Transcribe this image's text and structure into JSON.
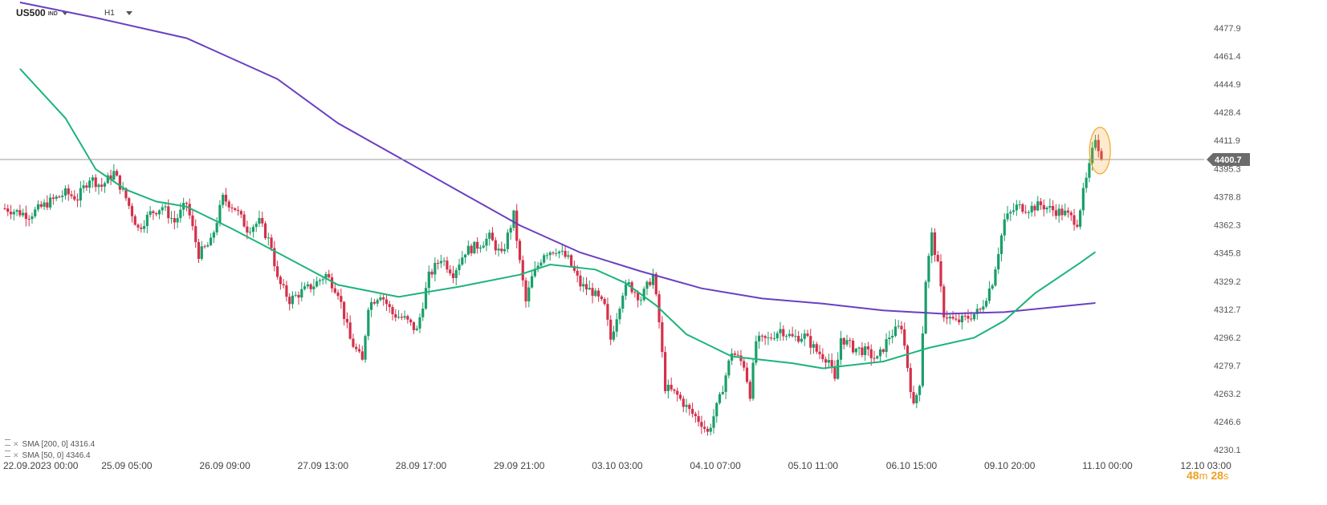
{
  "header": {
    "symbol": "US500",
    "symbol_suffix": "IND",
    "timeframe": "H1"
  },
  "legend": [
    {
      "label": "SMA [200, 0]",
      "value": "4316.4",
      "color": "#6a3fc2"
    },
    {
      "label": "SMA [50, 0]",
      "value": "4346.4",
      "color": "#1db47a"
    }
  ],
  "countdown": {
    "minutes": "48",
    "minutes_unit": "m",
    "seconds": "28",
    "seconds_unit": "s"
  },
  "current_price": {
    "label": "4400.7",
    "value": 4400.7
  },
  "colors": {
    "up": "#1a9e6a",
    "down": "#d4304a",
    "sma200": "#6a3fc2",
    "sma50": "#1db47a",
    "price_line": "#999999",
    "highlight": "#f5a623"
  },
  "chart_data": {
    "type": "candlestick",
    "instrument": "US500",
    "timeframe": "H1",
    "y_ticks": [
      "4477.9",
      "4461.4",
      "4444.9",
      "4428.4",
      "4411.9",
      "4395.3",
      "4378.8",
      "4362.3",
      "4345.8",
      "4329.2",
      "4312.7",
      "4296.2",
      "4279.7",
      "4263.2",
      "4246.6",
      "4230.1"
    ],
    "y_range": [
      4225,
      4485
    ],
    "x_ticks": [
      "22.09.2023  00:00",
      "25.09  05:00",
      "26.09  09:00",
      "27.09  13:00",
      "28.09  17:00",
      "29.09  21:00",
      "03.10  03:00",
      "04.10  07:00",
      "05.10  11:00",
      "06.10  15:00",
      "09.10  20:00",
      "11.10  00:00",
      "12.10  03:00"
    ],
    "price_points": [
      [
        0,
        4372
      ],
      [
        8,
        4368
      ],
      [
        14,
        4375
      ],
      [
        20,
        4381
      ],
      [
        24,
        4378
      ],
      [
        28,
        4390
      ],
      [
        32,
        4385
      ],
      [
        36,
        4393
      ],
      [
        40,
        4378
      ],
      [
        44,
        4360
      ],
      [
        48,
        4369
      ],
      [
        52,
        4373
      ],
      [
        56,
        4364
      ],
      [
        60,
        4375
      ],
      [
        64,
        4345
      ],
      [
        68,
        4352
      ],
      [
        72,
        4378
      ],
      [
        76,
        4372
      ],
      [
        80,
        4360
      ],
      [
        84,
        4364
      ],
      [
        88,
        4350
      ],
      [
        90,
        4330
      ],
      [
        94,
        4318
      ],
      [
        98,
        4323
      ],
      [
        102,
        4327
      ],
      [
        106,
        4333
      ],
      [
        110,
        4323
      ],
      [
        114,
        4295
      ],
      [
        118,
        4282
      ],
      [
        120,
        4315
      ],
      [
        124,
        4322
      ],
      [
        128,
        4310
      ],
      [
        132,
        4307
      ],
      [
        136,
        4300
      ],
      [
        140,
        4332
      ],
      [
        144,
        4343
      ],
      [
        148,
        4334
      ],
      [
        152,
        4347
      ],
      [
        156,
        4350
      ],
      [
        160,
        4355
      ],
      [
        164,
        4344
      ],
      [
        168,
        4368
      ],
      [
        170,
        4340
      ],
      [
        172,
        4317
      ],
      [
        174,
        4331
      ],
      [
        178,
        4346
      ],
      [
        182,
        4348
      ],
      [
        186,
        4342
      ],
      [
        190,
        4327
      ],
      [
        194,
        4323
      ],
      [
        198,
        4314
      ],
      [
        200,
        4295
      ],
      [
        204,
        4323
      ],
      [
        206,
        4327
      ],
      [
        210,
        4319
      ],
      [
        214,
        4333
      ],
      [
        216,
        4305
      ],
      [
        218,
        4267
      ],
      [
        222,
        4262
      ],
      [
        226,
        4253
      ],
      [
        230,
        4246
      ],
      [
        232,
        4240
      ],
      [
        236,
        4260
      ],
      [
        240,
        4288
      ],
      [
        244,
        4280
      ],
      [
        246,
        4263
      ],
      [
        248,
        4294
      ],
      [
        252,
        4295
      ],
      [
        256,
        4301
      ],
      [
        260,
        4296
      ],
      [
        264,
        4297
      ],
      [
        268,
        4288
      ],
      [
        272,
        4283
      ],
      [
        274,
        4270
      ],
      [
        276,
        4296
      ],
      [
        280,
        4290
      ],
      [
        284,
        4288
      ],
      [
        288,
        4283
      ],
      [
        292,
        4297
      ],
      [
        296,
        4303
      ],
      [
        300,
        4255
      ],
      [
        302,
        4270
      ],
      [
        304,
        4330
      ],
      [
        306,
        4356
      ],
      [
        308,
        4338
      ],
      [
        310,
        4310
      ],
      [
        314,
        4305
      ],
      [
        318,
        4308
      ],
      [
        322,
        4312
      ],
      [
        326,
        4329
      ],
      [
        330,
        4365
      ],
      [
        334,
        4373
      ],
      [
        338,
        4372
      ],
      [
        342,
        4374
      ],
      [
        346,
        4371
      ],
      [
        350,
        4369
      ],
      [
        354,
        4364
      ],
      [
        356,
        4381
      ],
      [
        358,
        4396
      ],
      [
        360,
        4414
      ],
      [
        362,
        4402
      ]
    ],
    "sma200_points": [
      [
        5,
        4493
      ],
      [
        30,
        4484
      ],
      [
        60,
        4472
      ],
      [
        90,
        4448
      ],
      [
        110,
        4422
      ],
      [
        130,
        4402
      ],
      [
        150,
        4382
      ],
      [
        170,
        4362
      ],
      [
        190,
        4346
      ],
      [
        210,
        4335
      ],
      [
        230,
        4325
      ],
      [
        250,
        4319
      ],
      [
        270,
        4316
      ],
      [
        290,
        4312
      ],
      [
        310,
        4310
      ],
      [
        330,
        4311
      ],
      [
        360,
        4316.4
      ]
    ],
    "sma50_points": [
      [
        5,
        4454
      ],
      [
        20,
        4425
      ],
      [
        30,
        4395
      ],
      [
        40,
        4383
      ],
      [
        50,
        4376
      ],
      [
        60,
        4373
      ],
      [
        75,
        4360
      ],
      [
        90,
        4346
      ],
      [
        110,
        4327
      ],
      [
        130,
        4320
      ],
      [
        150,
        4326
      ],
      [
        170,
        4333
      ],
      [
        180,
        4339
      ],
      [
        195,
        4336
      ],
      [
        205,
        4328
      ],
      [
        215,
        4315
      ],
      [
        225,
        4298
      ],
      [
        240,
        4285
      ],
      [
        260,
        4281
      ],
      [
        270,
        4278
      ],
      [
        290,
        4282
      ],
      [
        305,
        4290
      ],
      [
        320,
        4296
      ],
      [
        330,
        4306
      ],
      [
        340,
        4322
      ],
      [
        355,
        4340
      ],
      [
        360,
        4346.4
      ]
    ]
  }
}
